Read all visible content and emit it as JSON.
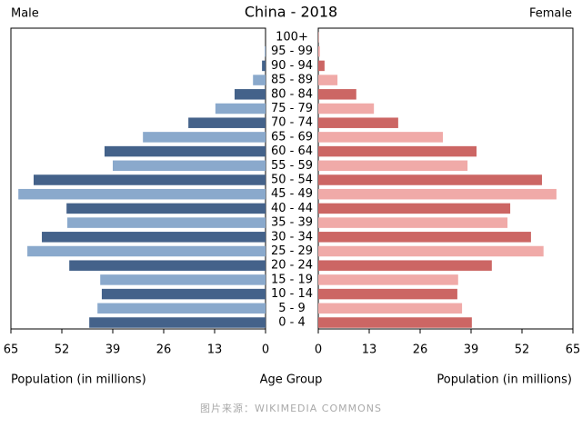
{
  "chart_data": {
    "type": "population-pyramid",
    "title": "China - 2018",
    "left_label": "Male",
    "right_label": "Female",
    "xlabel": "Population (in millions)",
    "center_label": "Age Group",
    "source": "图片来源：WIKIMEDIA COMMONS",
    "categories": [
      "0 - 4",
      "5 - 9",
      "10 - 14",
      "15 - 19",
      "20 - 24",
      "25 - 29",
      "30 - 34",
      "35 - 39",
      "40 - 44",
      "45 - 49",
      "50 - 54",
      "55 - 59",
      "60 - 64",
      "65 - 69",
      "70 - 74",
      "75 - 79",
      "80 - 84",
      "85 - 89",
      "90 - 94",
      "95 - 99",
      "100+"
    ],
    "series": [
      {
        "name": "Male",
        "colors": [
          "#44628a",
          "#8aa9cc"
        ],
        "values": [
          45.0,
          42.9,
          41.8,
          42.2,
          50.1,
          60.8,
          57.1,
          50.6,
          50.8,
          63.1,
          59.2,
          39.0,
          41.1,
          31.3,
          19.7,
          12.8,
          7.9,
          3.2,
          0.9,
          0.2,
          0.0
        ]
      },
      {
        "name": "Female",
        "colors": [
          "#cc6664",
          "#f0aaa8"
        ],
        "values": [
          39.2,
          36.7,
          35.5,
          35.7,
          44.3,
          57.5,
          54.3,
          48.3,
          49.0,
          60.8,
          57.1,
          38.1,
          40.4,
          31.8,
          20.4,
          14.2,
          9.7,
          4.9,
          1.6,
          0.4,
          0.1
        ]
      }
    ],
    "xlim": [
      0,
      65
    ],
    "xticks": [
      0,
      13,
      26,
      39,
      52,
      65
    ]
  }
}
